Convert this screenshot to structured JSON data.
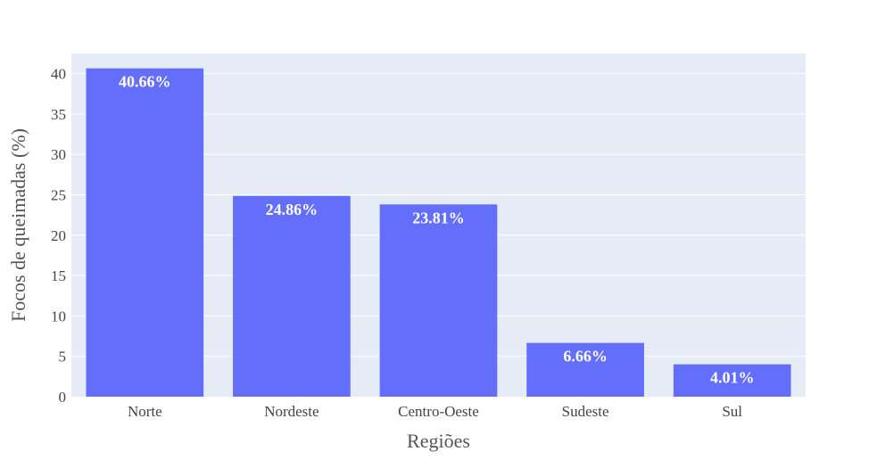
{
  "chart_data": {
    "type": "bar",
    "title": "",
    "xlabel": "Regiões",
    "ylabel": "Focos de queimadas (%)",
    "categories": [
      "Norte",
      "Nordeste",
      "Centro-Oeste",
      "Sudeste",
      "Sul"
    ],
    "values": [
      40.66,
      24.86,
      23.81,
      6.66,
      4.01
    ],
    "data_labels": [
      "40.66%",
      "24.86%",
      "23.81%",
      "6.66%",
      "4.01%"
    ],
    "ylim": [
      0,
      42.5
    ],
    "yticks": [
      0,
      5,
      10,
      15,
      20,
      25,
      30,
      35,
      40
    ],
    "grid": true,
    "legend": "none",
    "colors": {
      "bar": "#636efa",
      "plot_background": "#e5ecf6",
      "grid": "#ffffff"
    }
  }
}
